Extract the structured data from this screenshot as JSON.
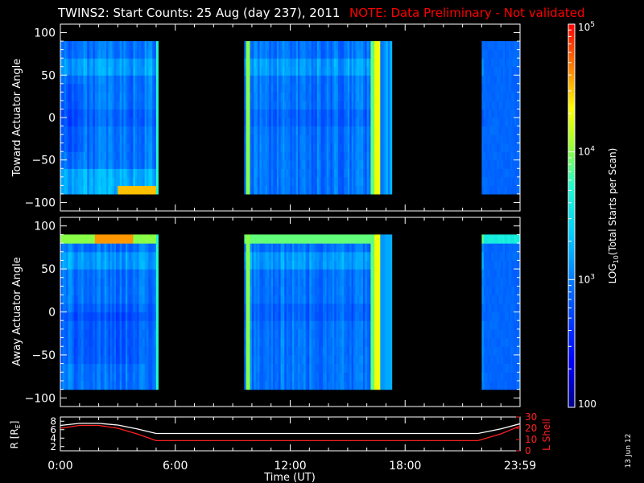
{
  "title": "TWINS2: Start Counts: 25 Aug (day 237), 2011",
  "note": "NOTE: Data Preliminary - Not validated",
  "date_stamp": "13 Jun 12",
  "colors": {
    "background": "#000000",
    "axis": "#ffffff",
    "note": "#ff0000",
    "r_line": "#ffffff",
    "lshell_line": "#ff2020"
  },
  "colorbar": {
    "label": "LOG10(Total Starts per Scan)",
    "label_main": "LOG",
    "label_sub": "10",
    "label_rest": "(Total Starts per Scan)",
    "range": [
      100,
      100000
    ],
    "scale": "log",
    "ticks": [
      {
        "value": 100,
        "label": "100"
      },
      {
        "value": 1000,
        "label": "10",
        "exp": "3"
      },
      {
        "value": 10000,
        "label": "10",
        "exp": "4"
      },
      {
        "value": 100000,
        "label": "10",
        "exp": "5"
      }
    ]
  },
  "chart_data": [
    {
      "type": "heatmap",
      "panel": "toward",
      "ylabel": "Toward Actuator Angle",
      "ylim": [
        -110,
        110
      ],
      "yticks": [
        100,
        50,
        0,
        -50,
        -100
      ],
      "xlim": [
        0,
        24
      ],
      "data_segments_hours": [
        [
          0.0,
          5.1
        ],
        [
          9.6,
          17.3
        ],
        [
          22.0,
          24.0
        ]
      ],
      "angle_range": [
        -90,
        90
      ],
      "notes": "log10 counts mostly ~2.8-3.2 (blue-cyan); saturated yellow/red near 16.1-16.6 h and near 9.7 h; red band near -85 deg at 3-5 h"
    },
    {
      "type": "heatmap",
      "panel": "away",
      "ylabel": "Away Actuator Angle",
      "ylim": [
        -110,
        110
      ],
      "yticks": [
        100,
        50,
        0,
        -50,
        -100
      ],
      "xlim": [
        0,
        24
      ],
      "data_segments_hours": [
        [
          0.0,
          5.1
        ],
        [
          9.6,
          17.3
        ],
        [
          22.0,
          24.0
        ]
      ],
      "angle_range": [
        -90,
        90
      ],
      "notes": "yellow/orange band near +85 deg; saturated yellow near 16.1-16.6 h"
    },
    {
      "type": "line",
      "panel": "orbit",
      "ylabel_left": "R [RE]",
      "ylabel_left_main": "R [R",
      "ylabel_left_sub": "E",
      "ylabel_left_tail": "]",
      "ylabel_right": "L Shell",
      "left_ticks": [
        8,
        6,
        4,
        2
      ],
      "right_ticks": [
        30,
        20,
        10,
        0
      ],
      "ylim_left": [
        1,
        9
      ],
      "ylim_right": [
        0,
        30
      ],
      "xlabel": "Time (UT)",
      "xlim": [
        0,
        24
      ],
      "xtick_labels": [
        {
          "hour": 0,
          "label": "0:00"
        },
        {
          "hour": 6,
          "label": "6:00"
        },
        {
          "hour": 12,
          "label": "12:00"
        },
        {
          "hour": 18,
          "label": "18:00"
        },
        {
          "hour": 24,
          "label": "23:59"
        }
      ],
      "series": [
        {
          "name": "R [RE]",
          "x": [
            0,
            1,
            2,
            3,
            4,
            5,
            6,
            12,
            18,
            21.8,
            23,
            24
          ],
          "y": [
            7.0,
            7.5,
            7.5,
            7.1,
            6.2,
            5.1,
            5.1,
            5.1,
            5.1,
            5.1,
            6.2,
            7.4
          ]
        },
        {
          "name": "L Shell",
          "x": [
            0,
            1,
            2,
            3,
            4,
            5,
            6,
            12,
            18,
            21.8,
            23,
            24
          ],
          "y": [
            20,
            22.5,
            22.5,
            20,
            15,
            9,
            9,
            9,
            9,
            9,
            15,
            22
          ]
        }
      ]
    }
  ]
}
